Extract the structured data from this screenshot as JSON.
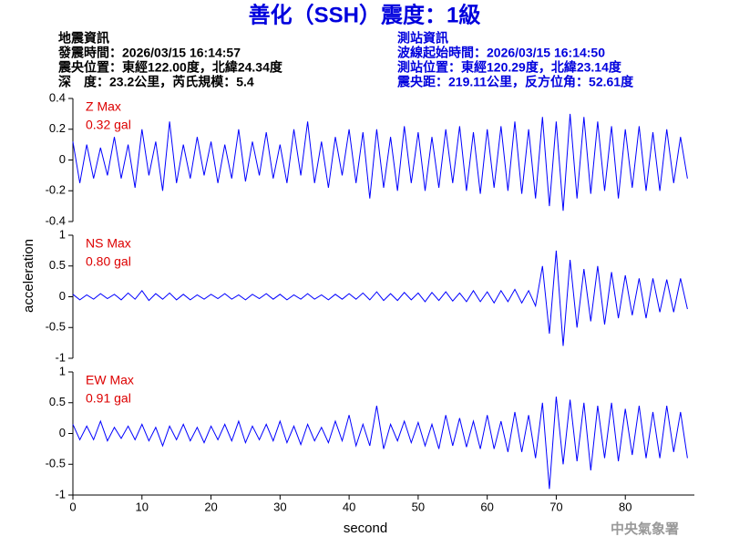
{
  "header": {
    "title": "善化（SSH）震度：1級",
    "left": [
      "地震資訊",
      "發震時間：2026/03/15 16:14:57",
      "震央位置：東經122.00度，北緯24.34度",
      "深　度：23.2公里，芮氏規模：5.4"
    ],
    "right": [
      "測站資訊",
      "波線起始時間：2026/03/15 16:14:50",
      "測站位置：東經120.29度，北緯23.14度",
      "震央距：219.11公里，反方位角：52.61度"
    ]
  },
  "footer": "中央氣象署",
  "chart_data": [
    {
      "type": "line",
      "annotations": [
        "Z Max",
        "0.32 gal"
      ],
      "xlim": [
        0,
        90
      ],
      "ylim": [
        -0.4,
        0.4
      ],
      "yticks": [
        -0.4,
        -0.2,
        0,
        0.2,
        0.4
      ],
      "x": [
        0,
        1,
        2,
        3,
        4,
        5,
        6,
        7,
        8,
        9,
        10,
        11,
        12,
        13,
        14,
        15,
        16,
        17,
        18,
        19,
        20,
        21,
        22,
        23,
        24,
        25,
        26,
        27,
        28,
        29,
        30,
        31,
        32,
        33,
        34,
        35,
        36,
        37,
        38,
        39,
        40,
        41,
        42,
        43,
        44,
        45,
        46,
        47,
        48,
        49,
        50,
        51,
        52,
        53,
        54,
        55,
        56,
        57,
        58,
        59,
        60,
        61,
        62,
        63,
        64,
        65,
        66,
        67,
        68,
        69,
        70,
        71,
        72,
        73,
        74,
        75,
        76,
        77,
        78,
        79,
        80,
        81,
        82,
        83,
        84,
        85,
        86,
        87,
        88,
        89
      ],
      "series": [
        {
          "color": "#0000ff",
          "values": [
            0.12,
            -0.15,
            0.1,
            -0.12,
            0.08,
            -0.1,
            0.15,
            -0.12,
            0.1,
            -0.18,
            0.2,
            -0.1,
            0.12,
            -0.2,
            0.25,
            -0.15,
            0.1,
            -0.12,
            0.15,
            -0.1,
            0.12,
            -0.15,
            0.1,
            -0.12,
            0.2,
            -0.14,
            0.12,
            -0.1,
            0.18,
            -0.12,
            0.1,
            -0.15,
            0.2,
            -0.1,
            0.25,
            -0.15,
            0.12,
            -0.18,
            0.15,
            -0.1,
            0.2,
            -0.15,
            0.18,
            -0.25,
            0.2,
            -0.18,
            0.15,
            -0.2,
            0.22,
            -0.15,
            0.18,
            -0.2,
            0.15,
            -0.18,
            0.2,
            -0.15,
            0.22,
            -0.2,
            0.18,
            -0.22,
            0.2,
            -0.18,
            0.22,
            -0.2,
            0.25,
            -0.22,
            0.2,
            -0.25,
            0.28,
            -0.3,
            0.25,
            -0.33,
            0.3,
            -0.25,
            0.28,
            -0.22,
            0.25,
            -0.2,
            0.22,
            -0.25,
            0.2,
            -0.18,
            0.22,
            -0.2,
            0.18,
            -0.2,
            0.2,
            -0.15,
            0.15,
            -0.12
          ]
        }
      ]
    },
    {
      "type": "line",
      "annotations": [
        "NS Max",
        "0.80 gal"
      ],
      "ylabel": "acceleration",
      "xlim": [
        0,
        90
      ],
      "ylim": [
        -1,
        1
      ],
      "yticks": [
        -1,
        -0.5,
        0,
        0.5,
        1
      ],
      "x": [
        0,
        1,
        2,
        3,
        4,
        5,
        6,
        7,
        8,
        9,
        10,
        11,
        12,
        13,
        14,
        15,
        16,
        17,
        18,
        19,
        20,
        21,
        22,
        23,
        24,
        25,
        26,
        27,
        28,
        29,
        30,
        31,
        32,
        33,
        34,
        35,
        36,
        37,
        38,
        39,
        40,
        41,
        42,
        43,
        44,
        45,
        46,
        47,
        48,
        49,
        50,
        51,
        52,
        53,
        54,
        55,
        56,
        57,
        58,
        59,
        60,
        61,
        62,
        63,
        64,
        65,
        66,
        67,
        68,
        69,
        70,
        71,
        72,
        73,
        74,
        75,
        76,
        77,
        78,
        79,
        80,
        81,
        82,
        83,
        84,
        85,
        86,
        87,
        88,
        89
      ],
      "series": [
        {
          "color": "#0000ff",
          "values": [
            0.04,
            -0.05,
            0.03,
            -0.04,
            0.05,
            -0.03,
            0.04,
            -0.05,
            0.06,
            -0.04,
            0.1,
            -0.06,
            0.05,
            -0.04,
            0.06,
            -0.05,
            0.04,
            -0.05,
            0.03,
            -0.04,
            0.04,
            -0.03,
            0.05,
            -0.04,
            0.03,
            -0.05,
            0.04,
            -0.03,
            0.05,
            -0.04,
            0.04,
            -0.05,
            0.03,
            -0.04,
            0.05,
            -0.04,
            0.03,
            -0.05,
            0.04,
            -0.04,
            0.05,
            -0.04,
            0.06,
            -0.05,
            0.08,
            -0.06,
            0.05,
            -0.06,
            0.07,
            -0.05,
            0.06,
            -0.08,
            0.07,
            -0.06,
            0.08,
            -0.07,
            0.06,
            -0.08,
            0.1,
            -0.08,
            0.08,
            -0.1,
            0.1,
            -0.08,
            0.12,
            -0.1,
            0.1,
            -0.15,
            0.5,
            -0.6,
            0.75,
            -0.8,
            0.6,
            -0.5,
            0.45,
            -0.4,
            0.5,
            -0.45,
            0.4,
            -0.35,
            0.35,
            -0.3,
            0.3,
            -0.35,
            0.3,
            -0.25,
            0.28,
            -0.25,
            0.3,
            -0.2
          ]
        }
      ]
    },
    {
      "type": "line",
      "annotations": [
        "EW Max",
        "0.91 gal"
      ],
      "xlabel": "second",
      "xlim": [
        0,
        90
      ],
      "xticks": [
        0,
        10,
        20,
        30,
        40,
        50,
        60,
        70,
        80
      ],
      "ylim": [
        -1,
        1
      ],
      "yticks": [
        -1,
        -0.5,
        0,
        0.5,
        1
      ],
      "x": [
        0,
        1,
        2,
        3,
        4,
        5,
        6,
        7,
        8,
        9,
        10,
        11,
        12,
        13,
        14,
        15,
        16,
        17,
        18,
        19,
        20,
        21,
        22,
        23,
        24,
        25,
        26,
        27,
        28,
        29,
        30,
        31,
        32,
        33,
        34,
        35,
        36,
        37,
        38,
        39,
        40,
        41,
        42,
        43,
        44,
        45,
        46,
        47,
        48,
        49,
        50,
        51,
        52,
        53,
        54,
        55,
        56,
        57,
        58,
        59,
        60,
        61,
        62,
        63,
        64,
        65,
        66,
        67,
        68,
        69,
        70,
        71,
        72,
        73,
        74,
        75,
        76,
        77,
        78,
        79,
        80,
        81,
        82,
        83,
        84,
        85,
        86,
        87,
        88,
        89
      ],
      "series": [
        {
          "color": "#0000ff",
          "values": [
            0.15,
            -0.1,
            0.12,
            -0.1,
            0.2,
            -0.12,
            0.1,
            -0.08,
            0.12,
            -0.1,
            0.15,
            -0.12,
            0.1,
            -0.2,
            0.12,
            -0.1,
            0.15,
            -0.12,
            0.1,
            -0.15,
            0.12,
            -0.1,
            0.15,
            -0.12,
            0.2,
            -0.15,
            0.12,
            -0.1,
            0.15,
            -0.12,
            0.2,
            -0.15,
            0.12,
            -0.18,
            0.15,
            -0.12,
            0.1,
            -0.15,
            0.2,
            -0.12,
            0.3,
            -0.2,
            0.15,
            -0.2,
            0.45,
            -0.25,
            0.15,
            -0.12,
            0.2,
            -0.15,
            0.18,
            -0.2,
            0.15,
            -0.25,
            0.3,
            -0.2,
            0.25,
            -0.22,
            0.2,
            -0.25,
            0.3,
            -0.25,
            0.2,
            -0.3,
            0.35,
            -0.3,
            0.3,
            -0.4,
            0.5,
            -0.9,
            0.6,
            -0.5,
            0.55,
            -0.45,
            0.5,
            -0.6,
            0.45,
            -0.4,
            0.5,
            -0.45,
            0.4,
            -0.35,
            0.45,
            -0.4,
            0.35,
            -0.4,
            0.45,
            -0.3,
            0.35,
            -0.4
          ]
        }
      ]
    }
  ]
}
